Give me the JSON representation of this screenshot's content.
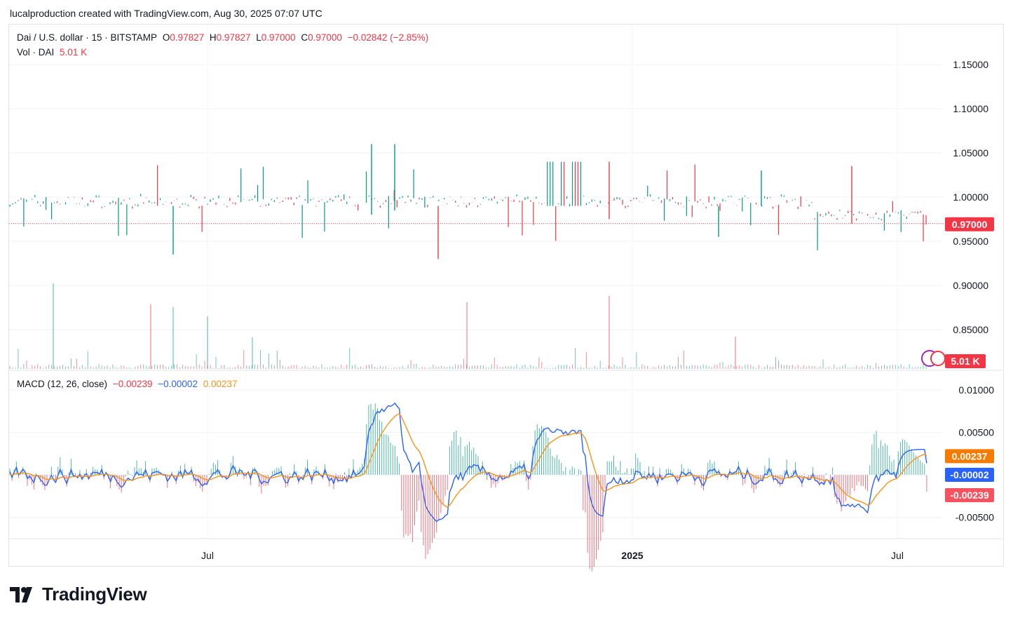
{
  "caption": "lucalproduction created with TradingView.com, Aug 30, 2025 07:07 UTC",
  "brand": {
    "name": "TradingView"
  },
  "legend": {
    "symbol": "Dai / U.S. dollar · 15 · BITSTAMP",
    "o_label": "O",
    "o": "0.97827",
    "h_label": "H",
    "h": "0.97827",
    "l_label": "L",
    "l": "0.97000",
    "c_label": "C",
    "c": "0.97000",
    "change": "−0.02842 (−2.85%)",
    "vol_label": "Vol · DAI",
    "vol_value": "5.01 K",
    "macd_label": "MACD (12, 26, close)",
    "macd_hist": "−0.00239",
    "macd_line": "−0.00002",
    "macd_signal": "0.00237"
  },
  "colors": {
    "up": "#089981",
    "down": "#f23645",
    "macd": "#2962ff",
    "signal": "#f7931a",
    "grid": "#f0f3fa",
    "text": "#131722"
  },
  "chart_data": {
    "type": "candlestick",
    "price_axis": {
      "ticks": [
        "1.15000",
        "1.10000",
        "1.05000",
        "1.00000",
        "0.95000",
        "0.90000",
        "0.85000"
      ],
      "tick_values": [
        1.15,
        1.1,
        1.05,
        1.0,
        0.95,
        0.9,
        0.85
      ],
      "last_price_label": "0.97000",
      "last_price": 0.97
    },
    "volume": {
      "last_label": "5.01 K"
    },
    "macd_axis": {
      "ticks": [
        "0.01000",
        "0.00500",
        "-0.00500"
      ],
      "tick_values": [
        0.01,
        0.005,
        -0.005
      ],
      "signal_label": "0.00237",
      "macd_label": "-0.00002",
      "hist_label": "-0.00239",
      "signal_value": 0.00237,
      "macd_value": -2e-05,
      "hist_value": -0.00239
    },
    "time_axis": {
      "labels": [
        "Jul",
        "2025",
        "Jul"
      ]
    }
  }
}
